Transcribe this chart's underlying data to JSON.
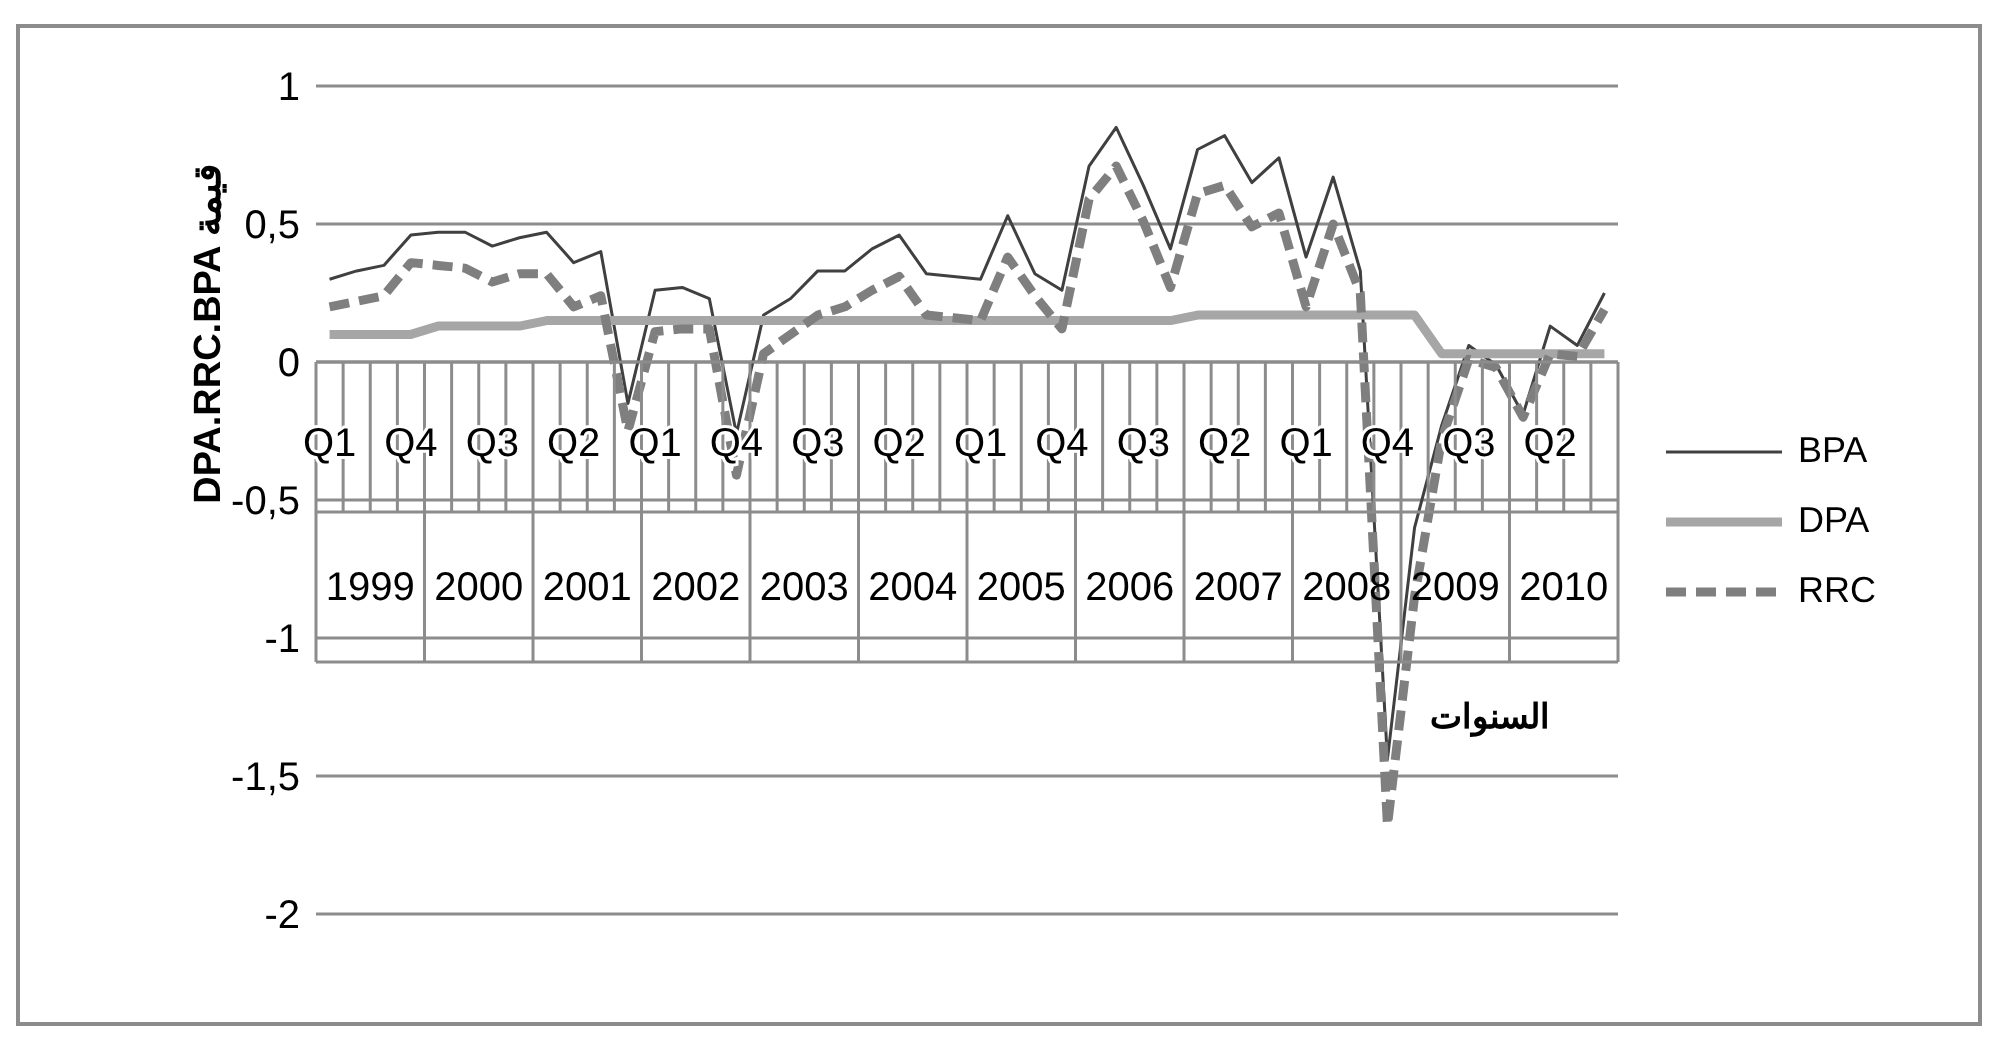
{
  "chart_data": {
    "type": "line",
    "ylabel": "DPA.RRC.BPA قيمة",
    "xlabel": "السنوات",
    "categories": [
      "Q1",
      null,
      null,
      "Q4",
      null,
      null,
      "Q3",
      null,
      null,
      "Q2",
      null,
      null,
      "Q1",
      null,
      null,
      "Q4",
      null,
      null,
      "Q3",
      null,
      null,
      "Q2",
      null,
      null,
      "Q1",
      null,
      null,
      "Q4",
      null,
      null,
      "Q3",
      null,
      null,
      "Q2",
      null,
      null,
      "Q1",
      null,
      null,
      "Q4",
      null,
      null,
      "Q3",
      null,
      null,
      "Q2",
      null,
      null
    ],
    "annotations": [
      "1999",
      "2000",
      "2001",
      "2002",
      "2003",
      "2004",
      "2005",
      "2006",
      "2007",
      "2008",
      "2009",
      "2010"
    ],
    "series": [
      {
        "name": "BPA",
        "color": "#404040",
        "values": [
          0.3,
          0.33,
          0.35,
          0.46,
          0.47,
          0.47,
          0.42,
          0.45,
          0.47,
          0.36,
          0.4,
          -0.15,
          0.26,
          0.27,
          0.23,
          -0.26,
          0.17,
          0.23,
          0.33,
          0.33,
          0.41,
          0.46,
          0.32,
          0.31,
          0.3,
          0.53,
          0.32,
          0.26,
          0.71,
          0.85,
          0.64,
          0.41,
          0.77,
          0.82,
          0.65,
          0.74,
          0.38,
          0.67,
          0.33,
          -1.44,
          -0.6,
          -0.23,
          0.06,
          -0.01,
          -0.19,
          0.13,
          0.06,
          0.25
        ]
      },
      {
        "name": "DPA",
        "color": "#a6a6a6",
        "values": [
          0.1,
          0.1,
          0.1,
          0.1,
          0.13,
          0.13,
          0.13,
          0.13,
          0.15,
          0.15,
          0.15,
          0.15,
          0.15,
          0.15,
          0.15,
          0.15,
          0.15,
          0.15,
          0.15,
          0.15,
          0.15,
          0.15,
          0.15,
          0.15,
          0.15,
          0.15,
          0.15,
          0.15,
          0.15,
          0.15,
          0.15,
          0.15,
          0.17,
          0.17,
          0.17,
          0.17,
          0.17,
          0.17,
          0.17,
          0.17,
          0.17,
          0.03,
          0.03,
          0.03,
          0.03,
          0.03,
          0.03,
          0.03
        ]
      },
      {
        "name": "RRC",
        "color": "#7f7f7f",
        "line_style": "dashed",
        "values": [
          0.2,
          0.22,
          0.24,
          0.36,
          0.35,
          0.34,
          0.29,
          0.32,
          0.32,
          0.2,
          0.24,
          -0.25,
          0.11,
          0.12,
          0.12,
          -0.41,
          0.03,
          0.1,
          0.17,
          0.2,
          0.26,
          0.31,
          0.17,
          0.16,
          0.15,
          0.38,
          0.24,
          0.12,
          0.59,
          0.71,
          0.51,
          0.27,
          0.61,
          0.64,
          0.49,
          0.54,
          0.2,
          0.5,
          0.25,
          -1.68,
          -0.85,
          -0.28,
          0.01,
          -0.02,
          -0.2,
          0.03,
          0.02,
          0.19
        ]
      }
    ],
    "ylim": [
      -2,
      1
    ],
    "yticks": [
      -2,
      {
        "value": -1.5,
        "label": "-1,5"
      },
      -1,
      {
        "value": -0.5,
        "label": "-0,5"
      },
      0,
      {
        "value": 0.5,
        "label": "0,5"
      },
      1
    ],
    "grid": "y",
    "legend": "right",
    "marker": "none"
  }
}
